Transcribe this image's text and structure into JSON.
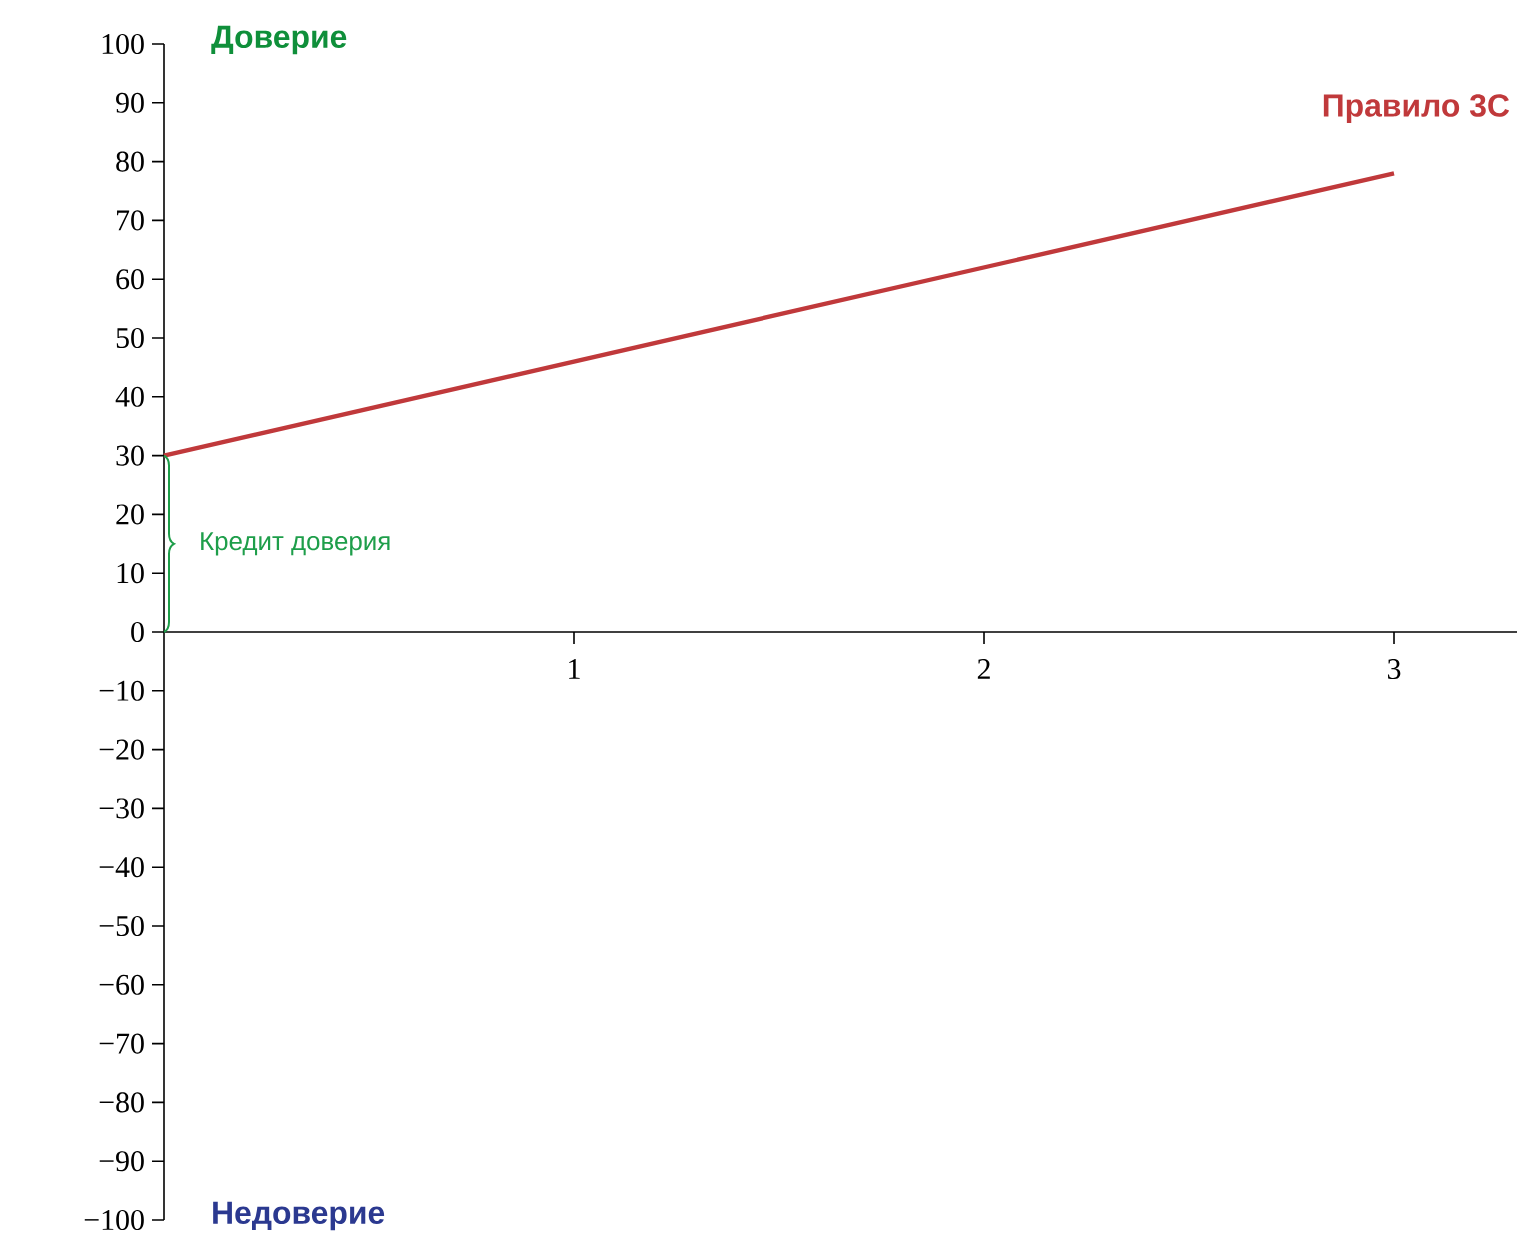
{
  "chart_data": {
    "type": "line",
    "x": [
      0,
      3
    ],
    "series": [
      {
        "name": "Правило 3С",
        "color": "#c0393b",
        "values": [
          30,
          78
        ]
      }
    ],
    "xlim": [
      0,
      3.3
    ],
    "xticks": [
      1,
      2,
      3
    ],
    "ylim": [
      -100,
      100
    ],
    "yticks": [
      {
        "value": -100,
        "label": "−100"
      },
      {
        "value": -90,
        "label": "−90"
      },
      {
        "value": -80,
        "label": "−80"
      },
      {
        "value": -70,
        "label": "−70"
      },
      {
        "value": -60,
        "label": "−60"
      },
      {
        "value": -50,
        "label": "−50"
      },
      {
        "value": -40,
        "label": "−40"
      },
      {
        "value": -30,
        "label": "−30"
      },
      {
        "value": -20,
        "label": "−20"
      },
      {
        "value": -10,
        "label": "−10"
      },
      0,
      10,
      20,
      30,
      40,
      50,
      60,
      70,
      80,
      90,
      100
    ],
    "annotations": [
      "Доверие",
      "Недоверие",
      "Кредит доверия"
    ],
    "grid": false,
    "legend": false,
    "marker": "none",
    "line_style": "solid"
  }
}
